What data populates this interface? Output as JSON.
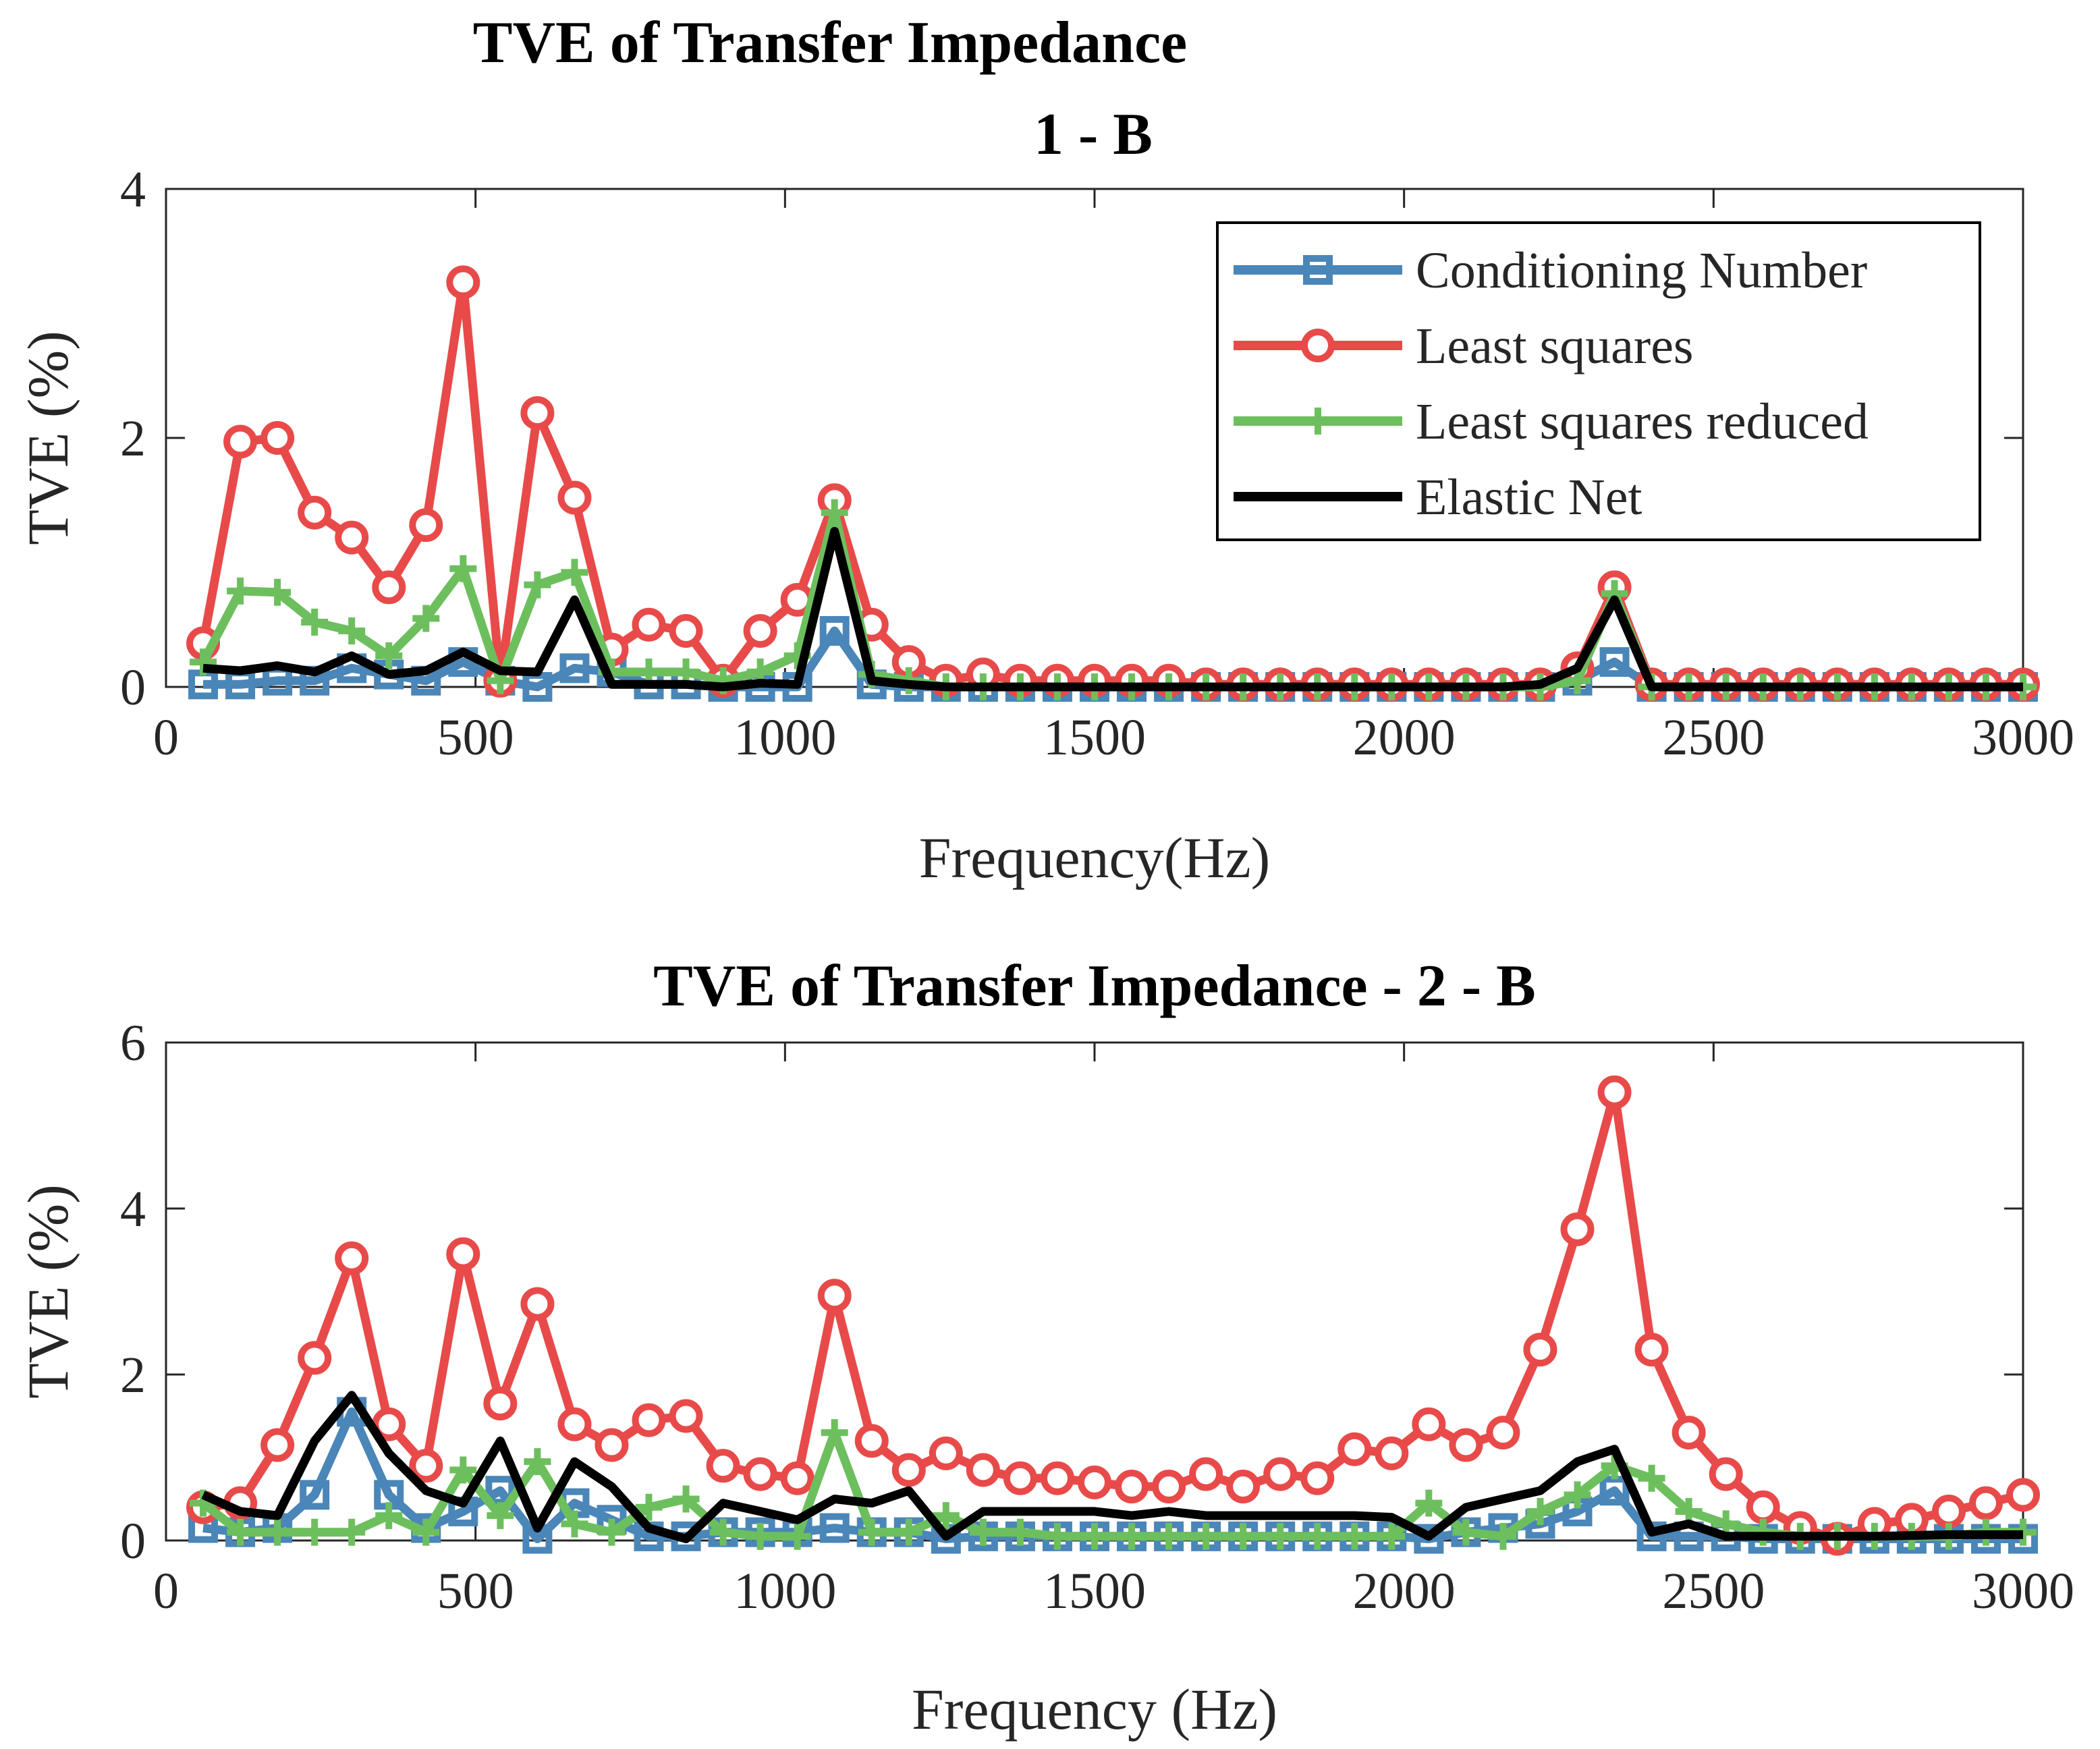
{
  "chart_data": [
    {
      "type": "line",
      "title": [
        "TVE of Transfer Impedance",
        "1 - B"
      ],
      "xlabel": "Frequency(Hz)",
      "ylabel": "TVE (%)",
      "xlim": [
        0,
        3000
      ],
      "ylim": [
        0,
        4
      ],
      "xticks": [
        0,
        500,
        1000,
        1500,
        2000,
        2500,
        3000
      ],
      "yticks": [
        0,
        2,
        4
      ],
      "legend": "top-right",
      "x": [
        60,
        120,
        180,
        240,
        300,
        360,
        420,
        480,
        540,
        600,
        660,
        720,
        780,
        840,
        900,
        960,
        1020,
        1080,
        1140,
        1200,
        1260,
        1320,
        1380,
        1440,
        1500,
        1560,
        1620,
        1680,
        1740,
        1800,
        1860,
        1920,
        1980,
        2040,
        2100,
        2160,
        2220,
        2280,
        2340,
        2400,
        2460,
        2520,
        2580,
        2640,
        2700,
        2760,
        2820,
        2880,
        2940,
        3000
      ],
      "series": [
        {
          "name": "Conditioning Number",
          "color": "#4a86b8",
          "marker": "square",
          "values": [
            0.02,
            0.02,
            0.05,
            0.05,
            0.15,
            0.1,
            0.05,
            0.2,
            0.05,
            0.0,
            0.15,
            0.12,
            0.02,
            0.02,
            0.0,
            0.0,
            0.0,
            0.45,
            0.02,
            0.0,
            0.0,
            0.0,
            0.0,
            0.0,
            0.0,
            0.0,
            0.0,
            0.0,
            0.0,
            0.0,
            0.0,
            0.0,
            0.0,
            0.0,
            0.0,
            0.0,
            0.0,
            0.05,
            0.2,
            0.0,
            0.0,
            0.0,
            0.0,
            0.0,
            0.0,
            0.0,
            0.0,
            0.0,
            0.0,
            0.0
          ]
        },
        {
          "name": "Least squares",
          "color": "#e84a4a",
          "marker": "circle",
          "values": [
            0.35,
            1.97,
            2.0,
            1.4,
            1.2,
            0.8,
            1.3,
            3.25,
            0.05,
            2.2,
            1.52,
            0.3,
            0.5,
            0.45,
            0.05,
            0.45,
            0.7,
            1.5,
            0.5,
            0.2,
            0.05,
            0.1,
            0.05,
            0.05,
            0.05,
            0.05,
            0.05,
            0.02,
            0.02,
            0.02,
            0.02,
            0.02,
            0.02,
            0.02,
            0.02,
            0.02,
            0.02,
            0.15,
            0.8,
            0.02,
            0.02,
            0.02,
            0.02,
            0.02,
            0.02,
            0.02,
            0.02,
            0.02,
            0.02,
            0.02
          ]
        },
        {
          "name": "Least squares reduced",
          "color": "#6dbf5e",
          "marker": "plus",
          "values": [
            0.2,
            0.77,
            0.76,
            0.52,
            0.45,
            0.25,
            0.55,
            0.95,
            0.05,
            0.82,
            0.92,
            0.12,
            0.12,
            0.12,
            0.05,
            0.12,
            0.25,
            1.4,
            0.1,
            0.05,
            0.0,
            0.0,
            0.0,
            0.0,
            0.0,
            0.0,
            0.0,
            0.0,
            0.0,
            0.0,
            0.0,
            0.0,
            0.0,
            0.0,
            0.0,
            0.0,
            0.0,
            0.05,
            0.75,
            0.0,
            0.0,
            0.0,
            0.0,
            0.0,
            0.0,
            0.0,
            0.0,
            0.0,
            0.0,
            0.0
          ]
        },
        {
          "name": "Elastic Net",
          "color": "#000000",
          "marker": "none",
          "values": [
            0.15,
            0.13,
            0.17,
            0.12,
            0.25,
            0.1,
            0.13,
            0.28,
            0.13,
            0.12,
            0.7,
            0.02,
            0.02,
            0.02,
            0.0,
            0.03,
            0.02,
            1.25,
            0.05,
            0.02,
            0.0,
            0.0,
            0.0,
            0.0,
            0.0,
            0.0,
            0.0,
            0.0,
            0.0,
            0.0,
            0.0,
            0.0,
            0.0,
            0.0,
            0.0,
            0.0,
            0.02,
            0.15,
            0.7,
            0.0,
            0.0,
            0.0,
            0.0,
            0.0,
            0.0,
            0.0,
            0.0,
            0.0,
            0.0,
            0.0
          ]
        }
      ]
    },
    {
      "type": "line",
      "title": [
        "TVE of Transfer Impedance - 2 - B"
      ],
      "xlabel": "Frequency (Hz)",
      "ylabel": "TVE (%)",
      "xlim": [
        0,
        3000
      ],
      "ylim": [
        0,
        6
      ],
      "xticks": [
        0,
        500,
        1000,
        1500,
        2000,
        2500,
        3000
      ],
      "yticks": [
        0,
        2,
        4,
        6
      ],
      "legend": "none",
      "x": [
        60,
        120,
        180,
        240,
        300,
        360,
        420,
        480,
        540,
        600,
        660,
        720,
        780,
        840,
        900,
        960,
        1020,
        1080,
        1140,
        1200,
        1260,
        1320,
        1380,
        1440,
        1500,
        1560,
        1620,
        1680,
        1740,
        1800,
        1860,
        1920,
        1980,
        2040,
        2100,
        2160,
        2220,
        2280,
        2340,
        2400,
        2460,
        2520,
        2580,
        2640,
        2700,
        2760,
        2820,
        2880,
        2940,
        3000
      ],
      "series": [
        {
          "name": "Conditioning Number",
          "color": "#4a86b8",
          "marker": "square",
          "values": [
            0.15,
            0.1,
            0.15,
            0.55,
            1.55,
            0.55,
            0.15,
            0.35,
            0.6,
            0.02,
            0.45,
            0.25,
            0.05,
            0.05,
            0.1,
            0.1,
            0.1,
            0.15,
            0.1,
            0.1,
            0.02,
            0.05,
            0.05,
            0.05,
            0.05,
            0.05,
            0.05,
            0.05,
            0.05,
            0.05,
            0.05,
            0.05,
            0.05,
            0.02,
            0.1,
            0.15,
            0.2,
            0.35,
            0.6,
            0.05,
            0.05,
            0.05,
            0.02,
            0.02,
            0.02,
            0.02,
            0.02,
            0.02,
            0.02,
            0.02
          ]
        },
        {
          "name": "Least squares",
          "color": "#e84a4a",
          "marker": "circle",
          "values": [
            0.4,
            0.45,
            1.15,
            2.2,
            3.4,
            1.4,
            0.9,
            3.45,
            1.65,
            2.85,
            1.4,
            1.15,
            1.45,
            1.5,
            0.9,
            0.8,
            0.75,
            2.95,
            1.2,
            0.85,
            1.05,
            0.85,
            0.75,
            0.75,
            0.7,
            0.65,
            0.65,
            0.8,
            0.65,
            0.8,
            0.75,
            1.1,
            1.05,
            1.4,
            1.15,
            1.3,
            2.3,
            3.75,
            5.4,
            2.3,
            1.3,
            0.8,
            0.4,
            0.15,
            0.02,
            0.2,
            0.25,
            0.35,
            0.45,
            0.55
          ]
        },
        {
          "name": "Least squares reduced",
          "color": "#6dbf5e",
          "marker": "plus",
          "values": [
            0.45,
            0.1,
            0.1,
            0.1,
            0.1,
            0.3,
            0.1,
            0.85,
            0.3,
            0.95,
            0.2,
            0.1,
            0.4,
            0.5,
            0.1,
            0.05,
            0.05,
            1.3,
            0.1,
            0.1,
            0.3,
            0.1,
            0.1,
            0.05,
            0.05,
            0.05,
            0.05,
            0.05,
            0.05,
            0.05,
            0.05,
            0.05,
            0.05,
            0.45,
            0.1,
            0.05,
            0.35,
            0.55,
            0.9,
            0.75,
            0.35,
            0.2,
            0.1,
            0.05,
            0.05,
            0.05,
            0.05,
            0.05,
            0.1,
            0.1
          ]
        },
        {
          "name": "Elastic Net",
          "color": "#000000",
          "marker": "none",
          "values": [
            0.55,
            0.35,
            0.3,
            1.2,
            1.75,
            1.05,
            0.6,
            0.45,
            1.2,
            0.15,
            0.95,
            0.65,
            0.15,
            0.02,
            0.45,
            0.35,
            0.25,
            0.5,
            0.45,
            0.6,
            0.05,
            0.35,
            0.35,
            0.35,
            0.35,
            0.3,
            0.35,
            0.3,
            0.3,
            0.3,
            0.3,
            0.3,
            0.28,
            0.05,
            0.4,
            0.5,
            0.6,
            0.95,
            1.1,
            0.1,
            0.2,
            0.05,
            0.05,
            0.05,
            0.05,
            0.05,
            0.06,
            0.07,
            0.07,
            0.07
          ]
        }
      ]
    }
  ]
}
